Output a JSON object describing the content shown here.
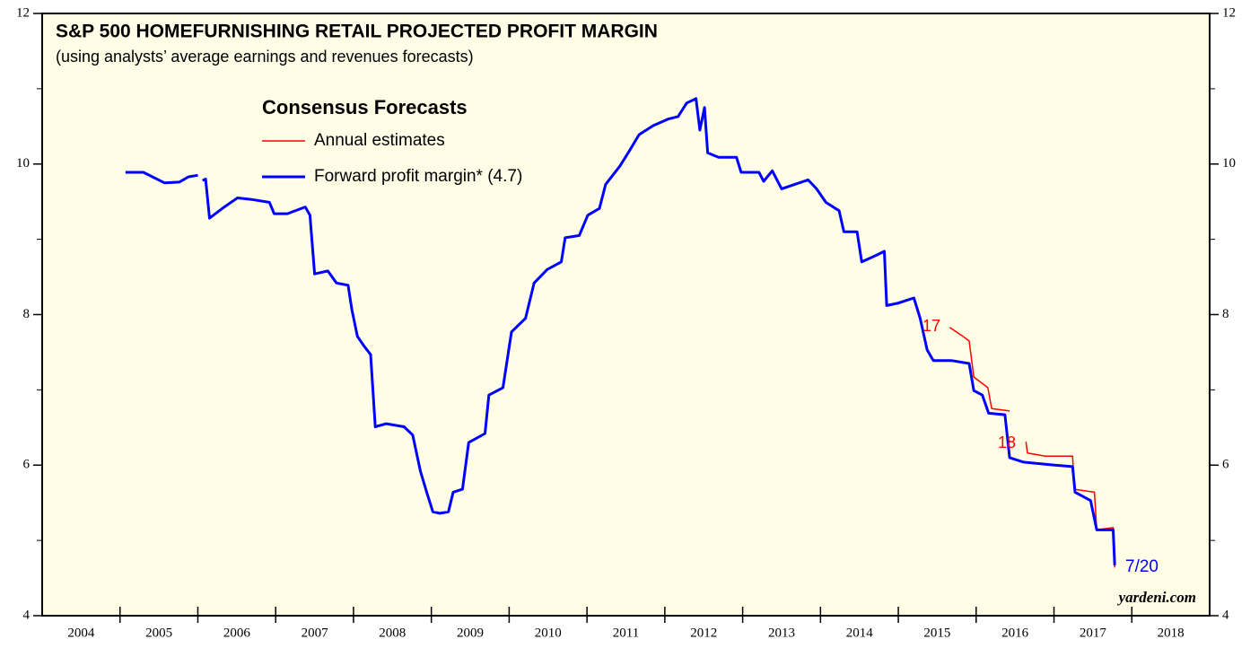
{
  "chart_data": {
    "type": "line",
    "title": "S&P 500 HOMEFURNISHING RETAIL PROJECTED PROFIT MARGIN",
    "subtitle": "(using analysts’ average earnings and revenues forecasts)",
    "legend_title": "Consensus Forecasts",
    "legend_position": "upper left",
    "background": "#fffde6",
    "xlim": [
      2004,
      2019
    ],
    "xticks": [
      2004,
      2005,
      2006,
      2007,
      2008,
      2009,
      2010,
      2011,
      2012,
      2013,
      2014,
      2015,
      2016,
      2017,
      2018
    ],
    "ylim": [
      4,
      12
    ],
    "yticks": [
      4,
      6,
      8,
      10,
      12
    ],
    "yminor": [
      5,
      7,
      9,
      11
    ],
    "annotations": [
      "17",
      "18",
      "7/20",
      "yardeni.com"
    ],
    "series": [
      {
        "name": "Annual estimates",
        "color": "#ff0000",
        "width": 1.5,
        "x": [
          2015.66,
          2015.83,
          2015.91,
          2015.97,
          2016.15,
          2016.2,
          2016.43,
          null,
          2016.64,
          2016.66,
          2016.89,
          2017.24,
          2017.26,
          2017.52,
          2017.55,
          2017.76,
          2017.78
        ],
        "values": [
          7.83,
          7.71,
          7.65,
          7.17,
          7.03,
          6.75,
          6.72,
          null,
          6.31,
          6.16,
          6.12,
          6.12,
          5.68,
          5.64,
          5.14,
          5.17,
          4.64
        ]
      },
      {
        "name": "Forward profit margin* (4.7)",
        "color": "#0000ff",
        "width": 3,
        "x": [
          2005.07,
          2005.3,
          2005.57,
          2005.76,
          2005.88,
          2006.0,
          null,
          2006.06,
          2006.1,
          2006.15,
          2006.34,
          2006.51,
          2006.69,
          2006.92,
          2006.98,
          2007.15,
          2007.38,
          2007.44,
          2007.5,
          2007.67,
          2007.78,
          2007.93,
          2007.98,
          2008.05,
          2008.13,
          2008.22,
          2008.28,
          2008.42,
          2008.65,
          2008.76,
          2008.86,
          2008.94,
          2009.02,
          2009.11,
          2009.22,
          2009.28,
          2009.4,
          2009.48,
          2009.69,
          2009.74,
          2009.92,
          2010.03,
          2010.21,
          2010.32,
          2010.49,
          2010.67,
          2010.72,
          2010.9,
          2011.01,
          2011.16,
          2011.24,
          2011.42,
          2011.53,
          2011.67,
          2011.85,
          2012.05,
          2012.17,
          2012.28,
          2012.4,
          2012.45,
          2012.51,
          2012.55,
          2012.69,
          2012.92,
          2012.98,
          2013.21,
          2013.27,
          2013.38,
          2013.5,
          2013.67,
          2013.84,
          2013.95,
          2014.07,
          2014.24,
          2014.3,
          2014.47,
          2014.53,
          2014.7,
          2014.82,
          2014.85,
          2014.99,
          2015.2,
          2015.28,
          2015.37,
          2015.45,
          2015.68,
          2015.91,
          2015.97,
          2016.08,
          2016.16,
          2016.37,
          2016.43,
          2016.61,
          2017.01,
          2017.24,
          2017.27,
          2017.47,
          2017.55,
          2017.76,
          2017.78
        ],
        "values": [
          9.89,
          9.89,
          9.75,
          9.76,
          9.83,
          9.85,
          null,
          9.78,
          9.8,
          9.28,
          9.43,
          9.55,
          9.53,
          9.49,
          9.34,
          9.34,
          9.43,
          9.32,
          8.54,
          8.58,
          8.42,
          8.39,
          8.06,
          7.71,
          7.59,
          7.47,
          6.51,
          6.55,
          6.51,
          6.4,
          5.92,
          5.64,
          5.38,
          5.36,
          5.38,
          5.64,
          5.68,
          6.3,
          6.42,
          6.93,
          7.03,
          7.77,
          7.95,
          8.42,
          8.6,
          8.7,
          9.02,
          9.05,
          9.32,
          9.41,
          9.73,
          9.97,
          10.15,
          10.39,
          10.51,
          10.6,
          10.63,
          10.81,
          10.87,
          10.45,
          10.75,
          10.15,
          10.09,
          10.09,
          9.89,
          9.89,
          9.77,
          9.91,
          9.67,
          9.73,
          9.79,
          9.67,
          9.49,
          9.38,
          9.1,
          9.1,
          8.7,
          8.78,
          8.84,
          8.12,
          8.15,
          8.22,
          7.95,
          7.53,
          7.39,
          7.39,
          7.35,
          6.99,
          6.93,
          6.69,
          6.67,
          6.1,
          6.04,
          6.0,
          5.98,
          5.64,
          5.53,
          5.14,
          5.14,
          4.67
        ]
      }
    ]
  }
}
